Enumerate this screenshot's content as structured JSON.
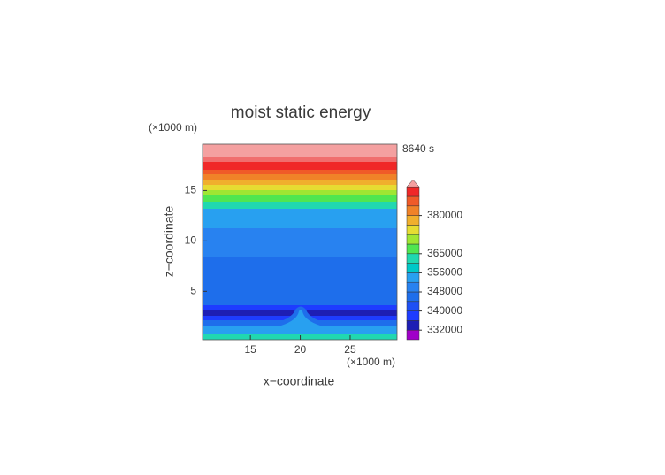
{
  "chart_data": {
    "type": "contour",
    "title": "moist static energy",
    "time_label": "8640 s",
    "x_label": "x−coordinate",
    "y_label": "z−coordinate",
    "x_unit": "(×1000 m)",
    "y_unit": "(×1000 m)",
    "xlim": [
      10.2,
      29.7
    ],
    "ylim": [
      0.2,
      19.6
    ],
    "xticks": [
      15,
      20,
      25
    ],
    "yticks": [
      5,
      10,
      15
    ],
    "colorbar": {
      "colors": [
        "#a000c8",
        "#1e1eb4",
        "#1e3cff",
        "#1e50f5",
        "#1e6eeb",
        "#2882f0",
        "#28a0f0",
        "#00c8c8",
        "#20d8b0",
        "#50e650",
        "#a0e632",
        "#e6dc32",
        "#f0af2d",
        "#f08228",
        "#f05a28",
        "#f02828"
      ],
      "over_color": "#f4a0a0",
      "ticks": [
        332000,
        340000,
        348000,
        356000,
        365000,
        380000
      ]
    }
  }
}
